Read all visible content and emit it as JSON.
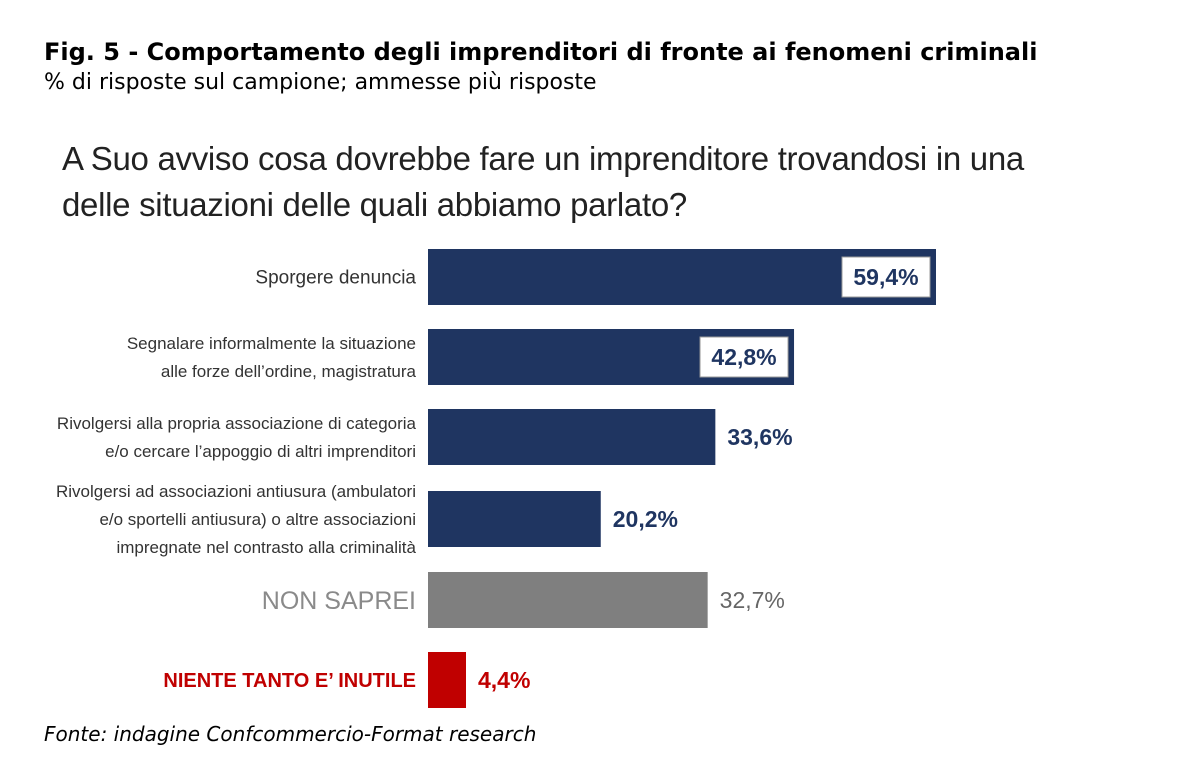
{
  "header": {
    "title": "Fig. 5 - Comportamento degli imprenditori di fronte ai fenomeni criminali",
    "subtitle": "% di risposte sul campione; ammesse più risposte"
  },
  "question": "A Suo avviso cosa dovrebbe fare un imprenditore trovandosi in una delle situazioni delle quali abbiamo parlato?",
  "source": "Fonte: indagine Confcommercio-Format research",
  "colors": {
    "navy": "#1f3561",
    "gray": "#7f7f7f",
    "red": "#c00000",
    "label_dark": "#333333",
    "label_gray": "#8a8a8a"
  },
  "chart_data": {
    "type": "bar",
    "orientation": "horizontal",
    "title": "A Suo avviso cosa dovrebbe fare un imprenditore trovandosi in una delle situazioni delle quali abbiamo parlato?",
    "unit": "%",
    "xlim": [
      0,
      60
    ],
    "categories": [
      [
        "Sporgere  denuncia"
      ],
      [
        "Segnalare informalmente la situazione",
        "alle forze dell’ordine, magistratura"
      ],
      [
        "Rivolgersi alla propria associazione di categoria",
        "e/o cercare l’appoggio di altri imprenditori"
      ],
      [
        "Rivolgersi ad associazioni antiusura (ambulatori",
        "e/o sportelli antiusura) o altre associazioni",
        "impregnate nel contrasto alla criminalità"
      ],
      [
        "NON SAPREI"
      ],
      [
        "NIENTE  TANTO E’ INUTILE"
      ]
    ],
    "values": [
      59.4,
      42.8,
      33.6,
      20.2,
      32.7,
      4.4
    ],
    "value_labels": [
      "59,4%",
      "42,8%",
      "33,6%",
      "20,2%",
      "32,7%",
      "4,4%"
    ],
    "bar_colors": [
      "navy",
      "navy",
      "navy",
      "navy",
      "gray",
      "red"
    ],
    "label_styles": [
      "dark",
      "dark",
      "dark",
      "dark",
      "gray-large",
      "red-bold"
    ],
    "value_styles": [
      "boxed",
      "boxed",
      "navy",
      "navy",
      "gray",
      "red"
    ]
  }
}
